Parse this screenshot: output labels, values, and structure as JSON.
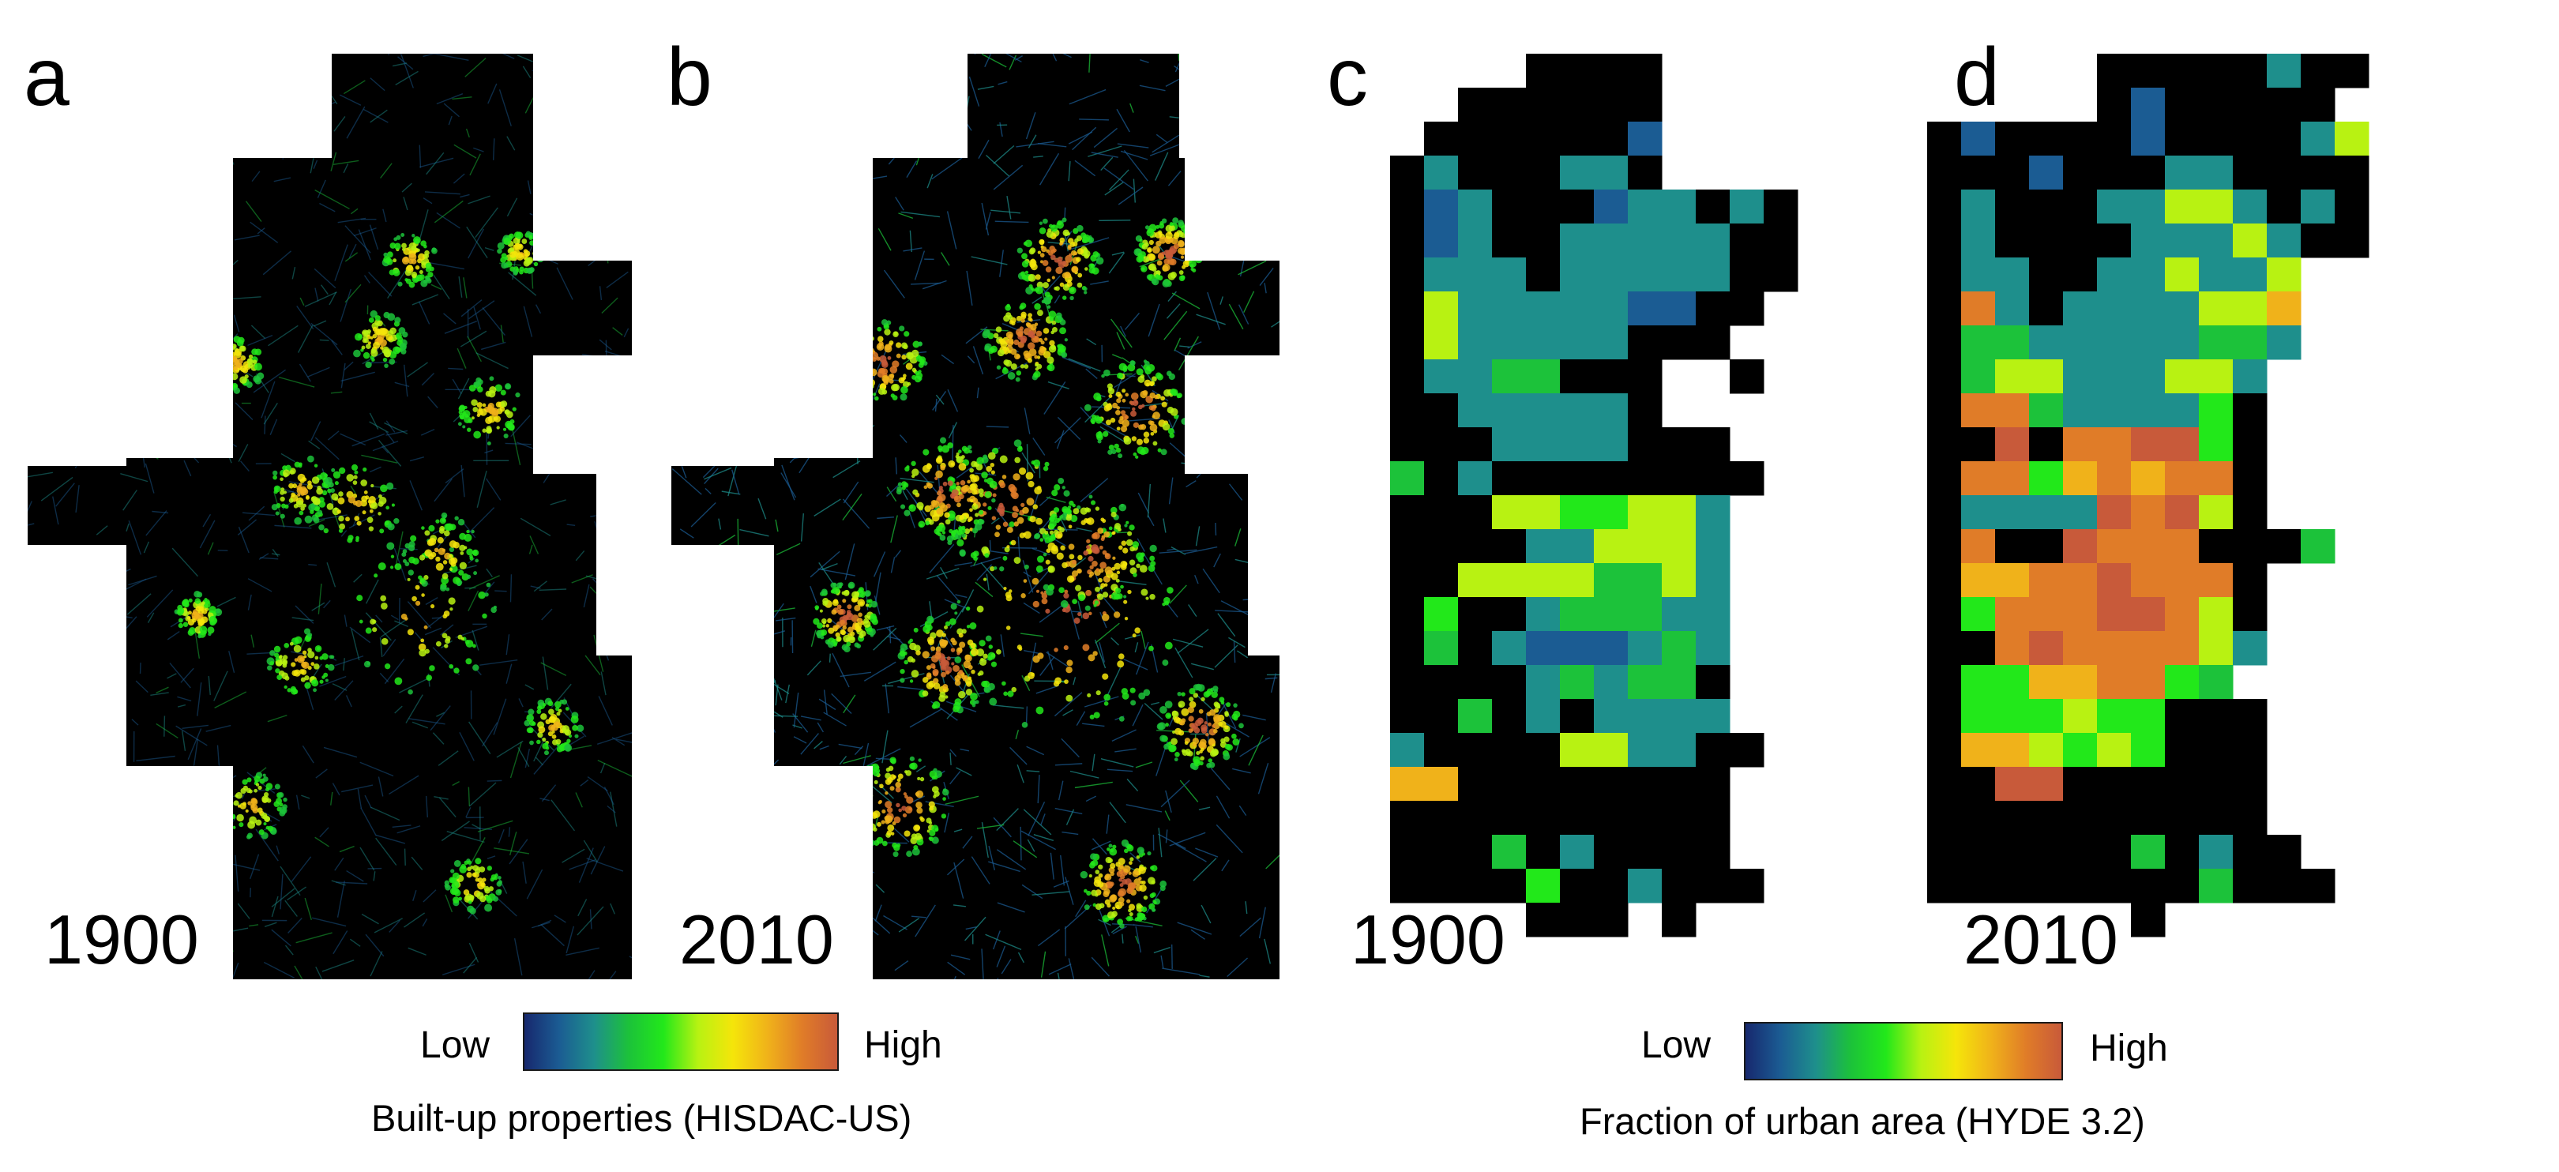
{
  "panels": [
    {
      "letter": "a",
      "year": "1900",
      "source": "HISDAC-US",
      "mode": "fine",
      "seed": 11,
      "intensity": 0.22
    },
    {
      "letter": "b",
      "year": "2010",
      "source": "HISDAC-US",
      "mode": "fine",
      "seed": 29,
      "intensity": 0.62
    },
    {
      "letter": "c",
      "year": "1900",
      "source": "HYDE 3.2",
      "mode": "grid"
    },
    {
      "letter": "d",
      "year": "2010",
      "source": "HYDE 3.2",
      "mode": "grid"
    }
  ],
  "legends": [
    {
      "low": "Low",
      "high": "High",
      "title": "Built-up properties (HISDAC-US)"
    },
    {
      "low": "Low",
      "high": "High",
      "title": "Fraction of urban area (HYDE 3.2)"
    }
  ],
  "colors": {
    "background": "#000000",
    "ramp": [
      "#17286e",
      "#1b5c93",
      "#1e8f8c",
      "#1cc23a",
      "#22e81a",
      "#b8f212",
      "#f5e50a",
      "#f0b21a",
      "#e07c28",
      "#c85a3a"
    ]
  },
  "grid_1900": [
    "....0000....",
    "..000000....",
    ".0000002....",
    "03000330....",
    "023000233030",
    "023003333300",
    "033303333300",
    "05333332200.",
    "0533333000..",
    "03344000..0.",
    "00333330....",
    "0003333000..",
    "40300000000.",
    "0005566553..",
    "0000335553..",
    "0055554453..",
    "0600344433..",
    "0403222343..",
    "0000343440..",
    "0040303333..",
    "30000553300.",
    "7700000000..",
    "0000000000..",
    "0004030000..",
    "00006003000.",
    "....000.0..."
  ],
  "grid_2010": [
    ".....00000300",
    ".....0200000.",
    "0200002000035",
    "0002000330000",
    "0300033553030",
    "0300003335300",
    "03300335335...",
    "08303333557...",
    "04433333443...",
    "0455333553...",
    "0884333360.",
    "0090889960..",
    "0886787880..",
    "0333398950..",
    "080098880004",
    "0778898880..",
    "0688899850..",
    "0089888853.",
    "066778864...",
    "0666566000.",
    "0775656000.",
    "0099000000..",
    "0000000000..",
    "00000040300.",
    "000000004000.",
    "......0......"
  ]
}
